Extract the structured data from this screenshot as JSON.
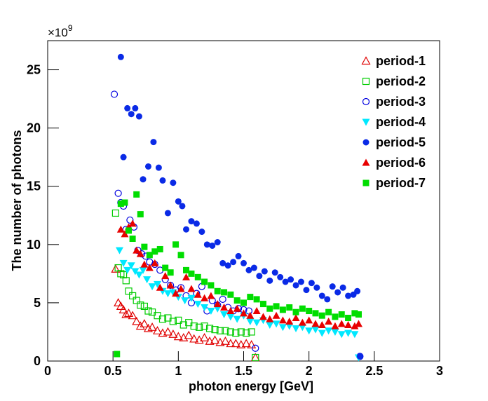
{
  "chart_data": {
    "type": "scatter",
    "xlabel": "photon energy [GeV]",
    "ylabel": "The number of photons",
    "y_multiplier": {
      "base": "×10",
      "exponent": "9"
    },
    "xlim": [
      0,
      3
    ],
    "ylim": [
      0,
      27.5
    ],
    "xticks": [
      0,
      0.5,
      1,
      1.5,
      2,
      2.5,
      3
    ],
    "yticks": [
      0,
      5,
      10,
      15,
      20,
      25
    ],
    "legend": "upper right",
    "series": [
      {
        "name": "period-1",
        "color": "#e00000",
        "marker": "triangle-open",
        "x": [
          0.52,
          0.54,
          0.56,
          0.58,
          0.6,
          0.62,
          0.65,
          0.68,
          0.71,
          0.74,
          0.77,
          0.8,
          0.84,
          0.88,
          0.92,
          0.96,
          1.0,
          1.04,
          1.08,
          1.12,
          1.16,
          1.2,
          1.24,
          1.28,
          1.32,
          1.36,
          1.4,
          1.44,
          1.48,
          1.52,
          1.56,
          1.59
        ],
        "values": [
          7.9,
          5.0,
          4.7,
          4.4,
          4.0,
          4.1,
          3.9,
          3.4,
          3.0,
          3.2,
          2.8,
          2.9,
          2.6,
          2.4,
          2.5,
          2.3,
          2.1,
          2.0,
          2.2,
          1.9,
          1.8,
          2.0,
          1.7,
          1.8,
          1.6,
          1.7,
          1.5,
          1.5,
          1.4,
          1.5,
          1.4,
          0.3
        ]
      },
      {
        "name": "period-2",
        "color": "#00cc00",
        "marker": "square-open",
        "x": [
          0.52,
          0.54,
          0.56,
          0.58,
          0.6,
          0.62,
          0.65,
          0.68,
          0.71,
          0.74,
          0.77,
          0.8,
          0.84,
          0.88,
          0.92,
          0.96,
          1.0,
          1.04,
          1.08,
          1.12,
          1.16,
          1.2,
          1.24,
          1.28,
          1.32,
          1.36,
          1.4,
          1.44,
          1.48,
          1.52,
          1.56,
          1.59
        ],
        "values": [
          12.7,
          8.0,
          7.5,
          7.4,
          6.9,
          6.0,
          5.6,
          5.2,
          4.8,
          4.7,
          4.3,
          4.2,
          3.9,
          3.6,
          3.7,
          3.4,
          3.5,
          3.1,
          3.3,
          3.0,
          2.9,
          3.0,
          2.8,
          2.7,
          2.6,
          2.6,
          2.5,
          2.4,
          2.5,
          2.4,
          2.5,
          0.3
        ]
      },
      {
        "name": "period-3",
        "color": "#0000e0",
        "marker": "circle-open",
        "x": [
          0.51,
          0.54,
          0.56,
          0.58,
          0.6,
          0.63,
          0.66,
          0.69,
          0.72,
          0.75,
          0.78,
          0.82,
          0.86,
          0.9,
          0.94,
          0.98,
          1.02,
          1.06,
          1.1,
          1.14,
          1.18,
          1.22,
          1.26,
          1.3,
          1.34,
          1.38,
          1.42,
          1.46,
          1.5,
          1.54,
          1.59,
          2.39
        ],
        "values": [
          22.9,
          14.4,
          13.6,
          13.3,
          11.3,
          12.1,
          11.5,
          9.5,
          9.2,
          9.0,
          8.5,
          8.3,
          7.8,
          7.0,
          6.5,
          6.1,
          6.3,
          5.6,
          5.0,
          5.8,
          6.4,
          4.3,
          5.2,
          4.8,
          5.3,
          4.6,
          4.3,
          4.5,
          4.4,
          4.3,
          1.1,
          0.4
        ]
      },
      {
        "name": "period-4",
        "color": "#00e8ff",
        "marker": "triangle-down",
        "x": [
          0.55,
          0.58,
          0.61,
          0.64,
          0.67,
          0.7,
          0.73,
          0.76,
          0.8,
          0.84,
          0.88,
          0.92,
          0.96,
          1.0,
          1.05,
          1.1,
          1.15,
          1.2,
          1.25,
          1.3,
          1.35,
          1.4,
          1.45,
          1.5,
          1.55,
          1.6,
          1.65,
          1.7,
          1.75,
          1.8,
          1.85,
          1.9,
          1.95,
          2.0,
          2.05,
          2.1,
          2.15,
          2.2,
          2.25,
          2.3,
          2.35,
          2.38
        ],
        "values": [
          9.5,
          8.4,
          7.8,
          8.2,
          7.7,
          7.4,
          7.8,
          7.0,
          6.4,
          6.6,
          6.0,
          5.8,
          5.9,
          5.5,
          5.2,
          5.4,
          4.9,
          4.6,
          4.3,
          4.5,
          4.0,
          3.8,
          3.6,
          3.9,
          3.4,
          3.3,
          3.5,
          3.1,
          3.2,
          2.9,
          3.0,
          2.8,
          2.9,
          2.6,
          2.7,
          2.4,
          2.6,
          2.5,
          2.3,
          2.4,
          2.3,
          0.3
        ]
      },
      {
        "name": "period-5",
        "color": "#0a2ae6",
        "marker": "circle",
        "x": [
          0.56,
          0.58,
          0.61,
          0.64,
          0.67,
          0.7,
          0.73,
          0.77,
          0.81,
          0.85,
          0.88,
          0.92,
          0.96,
          1.0,
          1.03,
          1.06,
          1.1,
          1.14,
          1.18,
          1.22,
          1.26,
          1.3,
          1.34,
          1.38,
          1.42,
          1.46,
          1.5,
          1.54,
          1.58,
          1.62,
          1.66,
          1.7,
          1.74,
          1.78,
          1.82,
          1.86,
          1.9,
          1.94,
          1.98,
          2.02,
          2.06,
          2.1,
          2.14,
          2.18,
          2.22,
          2.26,
          2.3,
          2.34,
          2.37,
          2.39
        ],
        "values": [
          26.1,
          17.5,
          21.7,
          21.2,
          21.7,
          21.0,
          15.6,
          16.7,
          18.8,
          16.6,
          15.5,
          12.7,
          15.3,
          13.7,
          13.3,
          11.3,
          12.0,
          11.8,
          11.1,
          10.0,
          9.9,
          10.2,
          8.4,
          8.2,
          8.5,
          9.0,
          8.4,
          7.8,
          8.0,
          7.3,
          7.7,
          6.9,
          7.6,
          7.2,
          6.8,
          7.0,
          6.5,
          6.8,
          6.1,
          6.7,
          6.3,
          5.6,
          5.3,
          6.4,
          5.9,
          6.3,
          5.6,
          5.7,
          6.0,
          0.4
        ]
      },
      {
        "name": "period-6",
        "color": "#e80000",
        "marker": "triangle",
        "x": [
          0.56,
          0.59,
          0.62,
          0.65,
          0.68,
          0.71,
          0.74,
          0.78,
          0.82,
          0.86,
          0.9,
          0.94,
          0.98,
          1.02,
          1.06,
          1.1,
          1.15,
          1.2,
          1.25,
          1.3,
          1.35,
          1.4,
          1.45,
          1.5,
          1.55,
          1.6,
          1.65,
          1.7,
          1.75,
          1.8,
          1.85,
          1.9,
          1.95,
          2.0,
          2.05,
          2.1,
          2.15,
          2.2,
          2.25,
          2.3,
          2.35,
          2.38
        ],
        "values": [
          11.3,
          10.9,
          11.5,
          11.8,
          9.5,
          9.2,
          8.3,
          8.0,
          8.4,
          6.3,
          7.3,
          6.5,
          5.8,
          6.2,
          7.2,
          6.2,
          5.7,
          5.4,
          5.6,
          4.9,
          4.6,
          4.3,
          4.5,
          4.1,
          3.9,
          4.3,
          3.8,
          3.6,
          3.9,
          3.5,
          3.4,
          3.7,
          3.3,
          3.5,
          3.2,
          3.1,
          3.4,
          3.0,
          3.2,
          3.1,
          3.0,
          3.2
        ]
      },
      {
        "name": "period-7",
        "color": "#00dd00",
        "marker": "square",
        "x": [
          0.53,
          0.56,
          0.59,
          0.62,
          0.65,
          0.68,
          0.71,
          0.74,
          0.78,
          0.82,
          0.86,
          0.9,
          0.94,
          0.98,
          1.02,
          1.06,
          1.1,
          1.15,
          1.2,
          1.25,
          1.3,
          1.35,
          1.4,
          1.45,
          1.5,
          1.55,
          1.6,
          1.65,
          1.7,
          1.75,
          1.8,
          1.85,
          1.9,
          1.95,
          2.0,
          2.05,
          2.1,
          2.15,
          2.2,
          2.25,
          2.3,
          2.35,
          2.38
        ],
        "values": [
          0.6,
          13.5,
          13.6,
          11.2,
          10.5,
          14.3,
          12.6,
          9.8,
          9.1,
          9.4,
          9.6,
          8.0,
          7.6,
          10.0,
          9.1,
          7.8,
          7.5,
          7.2,
          6.8,
          6.5,
          6.0,
          5.9,
          5.7,
          5.2,
          5.0,
          5.5,
          5.3,
          4.9,
          4.5,
          4.7,
          4.4,
          4.6,
          4.2,
          4.5,
          4.3,
          4.1,
          3.9,
          4.2,
          3.8,
          4.0,
          3.7,
          4.1,
          4.0
        ]
      }
    ]
  }
}
